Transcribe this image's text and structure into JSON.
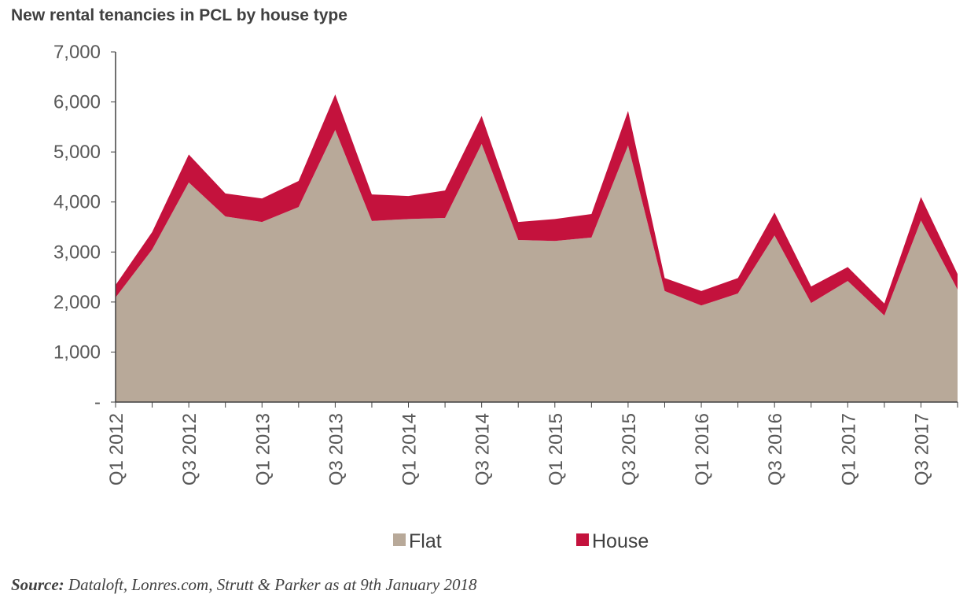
{
  "chart_data": {
    "type": "area",
    "stacked": true,
    "title": "New rental tenancies in PCL by house type",
    "xlabel": "",
    "ylabel": "",
    "ylim": [
      0,
      7000
    ],
    "yticks": [
      0,
      1000,
      2000,
      3000,
      4000,
      5000,
      6000,
      7000
    ],
    "ytick_labels": [
      "-",
      "1,000",
      "2,000",
      "3,000",
      "4,000",
      "5,000",
      "6,000",
      "7,000"
    ],
    "categories": [
      "Q1 2012",
      "Q2 2012",
      "Q3 2012",
      "Q4 2012",
      "Q1 2013",
      "Q2 2013",
      "Q3 2013",
      "Q4 2013",
      "Q1 2014",
      "Q2 2014",
      "Q3 2014",
      "Q4 2014",
      "Q1 2015",
      "Q2 2015",
      "Q3 2015",
      "Q4 2015",
      "Q1 2016",
      "Q2 2016",
      "Q3 2016",
      "Q4 2016",
      "Q1 2017",
      "Q2 2017",
      "Q3 2017",
      "Q4 2017"
    ],
    "xtick_labels": [
      "Q1 2012",
      "Q3 2012",
      "Q1 2013",
      "Q3 2013",
      "Q1 2014",
      "Q3 2014",
      "Q1 2015",
      "Q3 2015",
      "Q1 2016",
      "Q3 2016",
      "Q1 2017",
      "Q3 2017"
    ],
    "series": [
      {
        "name": "Flat",
        "color": "#b8a999",
        "values": [
          2090,
          3050,
          4390,
          3710,
          3600,
          3900,
          5440,
          3620,
          3660,
          3680,
          5160,
          3240,
          3220,
          3290,
          5130,
          2220,
          1930,
          2170,
          3330,
          1980,
          2420,
          1730,
          3630,
          2250
        ]
      },
      {
        "name": "House",
        "color": "#c4123d",
        "values": [
          250,
          350,
          560,
          460,
          470,
          520,
          710,
          530,
          460,
          550,
          560,
          360,
          440,
          470,
          690,
          260,
          290,
          310,
          460,
          330,
          280,
          240,
          470,
          310
        ]
      }
    ],
    "legend": "bottom",
    "grid": false
  },
  "source": {
    "label": "Source:",
    "text": " Dataloft, Lonres.com, Strutt & Parker as at 9th January 2018"
  }
}
